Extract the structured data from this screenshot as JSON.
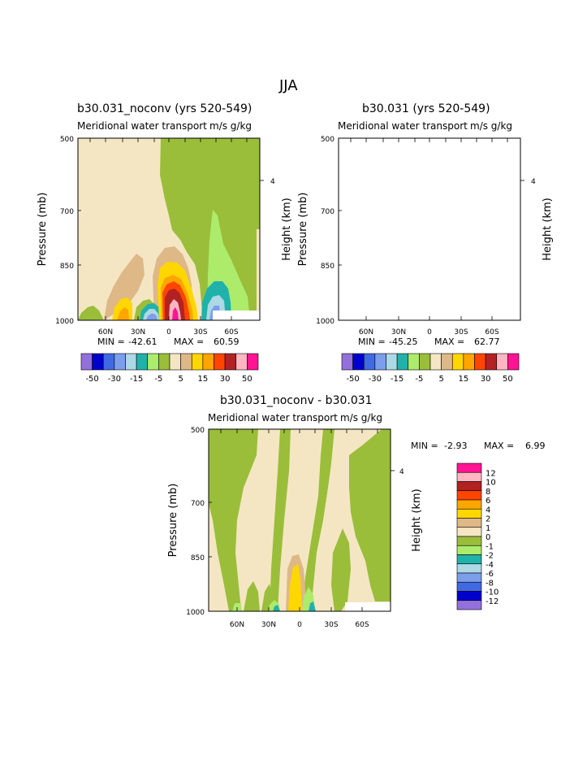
{
  "figure_title": "JJA",
  "chart_data": [
    {
      "type": "contour",
      "title": "b30.031_noconv (yrs 520-549)",
      "subtitle_left": "Meridional water transport",
      "subtitle_right": "m/s g/kg",
      "ylabel": "Pressure (mb)",
      "ylabel_right": "Height (km)",
      "yticks": [
        "500",
        "700",
        "850",
        "1000"
      ],
      "right_tick": "4",
      "xticks": [
        "60N",
        "30N",
        "0",
        "30S",
        "60S"
      ],
      "min_label": "MIN =",
      "min_value": "-42.61",
      "max_label": "MAX =",
      "max_value": "60.59"
    },
    {
      "type": "contour",
      "title": "b30.031 (yrs 520-549)",
      "subtitle_left": "Meridional water transport",
      "subtitle_right": "m/s g/kg",
      "ylabel": "Pressure (mb)",
      "ylabel_right": "Height (km)",
      "yticks": [
        "500",
        "700",
        "850",
        "1000"
      ],
      "right_tick": "4",
      "xticks": [
        "60N",
        "30N",
        "0",
        "30S",
        "60S"
      ],
      "min_label": "MIN =",
      "min_value": "-45.25",
      "max_label": "MAX =",
      "max_value": "62.77"
    },
    {
      "type": "contour",
      "title": "b30.031_noconv - b30.031",
      "subtitle_left": "Meridional water transport",
      "subtitle_right": "m/s g/kg",
      "ylabel": "Pressure (mb)",
      "ylabel_right": "Height (km)",
      "yticks": [
        "500",
        "700",
        "850",
        "1000"
      ],
      "right_tick": "4",
      "xticks": [
        "60N",
        "30N",
        "0",
        "30S",
        "60S"
      ],
      "min_label": "MIN =",
      "min_value": "-2.93",
      "max_label": "MAX =",
      "max_value": "6.99"
    }
  ],
  "colorbar_top": {
    "colors": [
      "#9370DB",
      "#0000CD",
      "#4169E1",
      "#7B9FEA",
      "#ADD8E6",
      "#20B2AA",
      "#ADEB6B",
      "#9ABE3A",
      "#F5E6C3",
      "#DEB887",
      "#FFD700",
      "#FFA500",
      "#FF4500",
      "#B22222",
      "#FFB6C1",
      "#FF1493"
    ],
    "labels": [
      "-50",
      "-30",
      "-15",
      "-5",
      "5",
      "15",
      "30",
      "50"
    ]
  },
  "colorbar_diff": {
    "colors": [
      "#FF1493",
      "#FFB6C1",
      "#B22222",
      "#FF4500",
      "#FFA500",
      "#FFD700",
      "#DEB887",
      "#F5E6C3",
      "#9ABE3A",
      "#ADEB6B",
      "#20B2AA",
      "#ADD8E6",
      "#7B9FEA",
      "#4169E1",
      "#0000CD",
      "#9370DB"
    ],
    "labels": [
      "12",
      "10",
      "8",
      "6",
      "4",
      "2",
      "1",
      "0",
      "-1",
      "-2",
      "-4",
      "-6",
      "-8",
      "-10",
      "-12"
    ]
  }
}
